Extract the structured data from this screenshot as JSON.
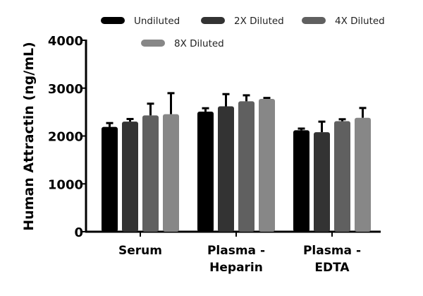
{
  "chart_data": {
    "type": "bar",
    "title": "",
    "xlabel": "",
    "ylabel": "Human Attractin (ng/mL)",
    "ylim": [
      0,
      4000
    ],
    "yticks": [
      0,
      1000,
      2000,
      3000,
      4000
    ],
    "grid": false,
    "legend": "top",
    "categories": [
      [
        "Serum"
      ],
      [
        "Plasma -",
        "Heparin"
      ],
      [
        "Plasma -",
        "EDTA"
      ]
    ],
    "series": [
      {
        "name": "Undiluted",
        "color": "#000000",
        "values": [
          2190,
          2510,
          2120
        ],
        "error": [
          80,
          70,
          35
        ]
      },
      {
        "name": "2X Diluted",
        "color": "#333333",
        "values": [
          2300,
          2620,
          2080
        ],
        "error": [
          55,
          255,
          220
        ]
      },
      {
        "name": "4X Diluted",
        "color": "#606060",
        "values": [
          2430,
          2725,
          2310
        ],
        "error": [
          245,
          125,
          40
        ]
      },
      {
        "name": "8X Diluted",
        "color": "#878787",
        "values": [
          2455,
          2775,
          2380
        ],
        "error": [
          440,
          20,
          205
        ]
      }
    ]
  }
}
